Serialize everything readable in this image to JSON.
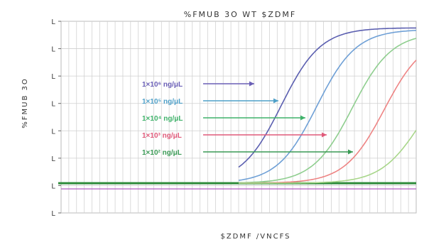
{
  "chart_data": {
    "type": "line",
    "title": "%FMUB 3O WT $ZDMF",
    "xlabel": "$ZDMF /VNCFS",
    "ylabel": "%FMUB 3O",
    "y_tick_labels": [
      "L",
      "L",
      "L",
      "L",
      "L",
      "L",
      "L",
      "L"
    ],
    "grid": true,
    "legend_placement": "left-center",
    "threshold_line": {
      "color": "#2e8b3a"
    },
    "series": [
      {
        "name": "1×10⁶ ng/μL",
        "color": "#5b5fb0",
        "arrow_color": "#6a5fb6"
      },
      {
        "name": "1×10⁵ ng/μL",
        "color": "#6fa0d6",
        "arrow_color": "#4fa0c8"
      },
      {
        "name": "1×10⁴ ng/μL",
        "color": "#8fce8f",
        "arrow_color": "#3fb26a"
      },
      {
        "name": "1×10³ ng/μL",
        "color": "#ee8484",
        "arrow_color": "#e05a7a"
      },
      {
        "name": "1×10² ng/μL",
        "color": "#a8d68a",
        "arrow_color": "#3a9a55"
      }
    ],
    "curves_midpoint_fraction": [
      0.62,
      0.72,
      0.82,
      0.91,
      1.01
    ],
    "curve_plateau_level": [
      0.96,
      0.95,
      0.93,
      0.91,
      0.72
    ]
  }
}
